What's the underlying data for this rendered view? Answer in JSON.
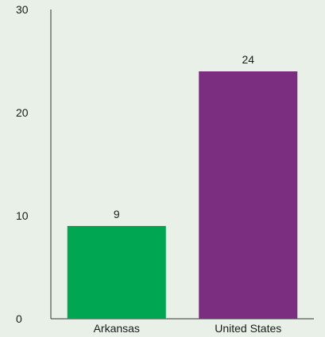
{
  "chart_data": {
    "type": "bar",
    "categories": [
      "Arkansas",
      "United States"
    ],
    "values": [
      9,
      24
    ],
    "bar_colors": [
      "#00a651",
      "#7b2d7f"
    ],
    "background_color": "#e8f0e8",
    "axis_color": "#333333",
    "y_ticks": [
      0,
      10,
      20,
      30
    ],
    "ylim": [
      0,
      30
    ],
    "grid": false,
    "data_labels": [
      "9",
      "24"
    ]
  }
}
